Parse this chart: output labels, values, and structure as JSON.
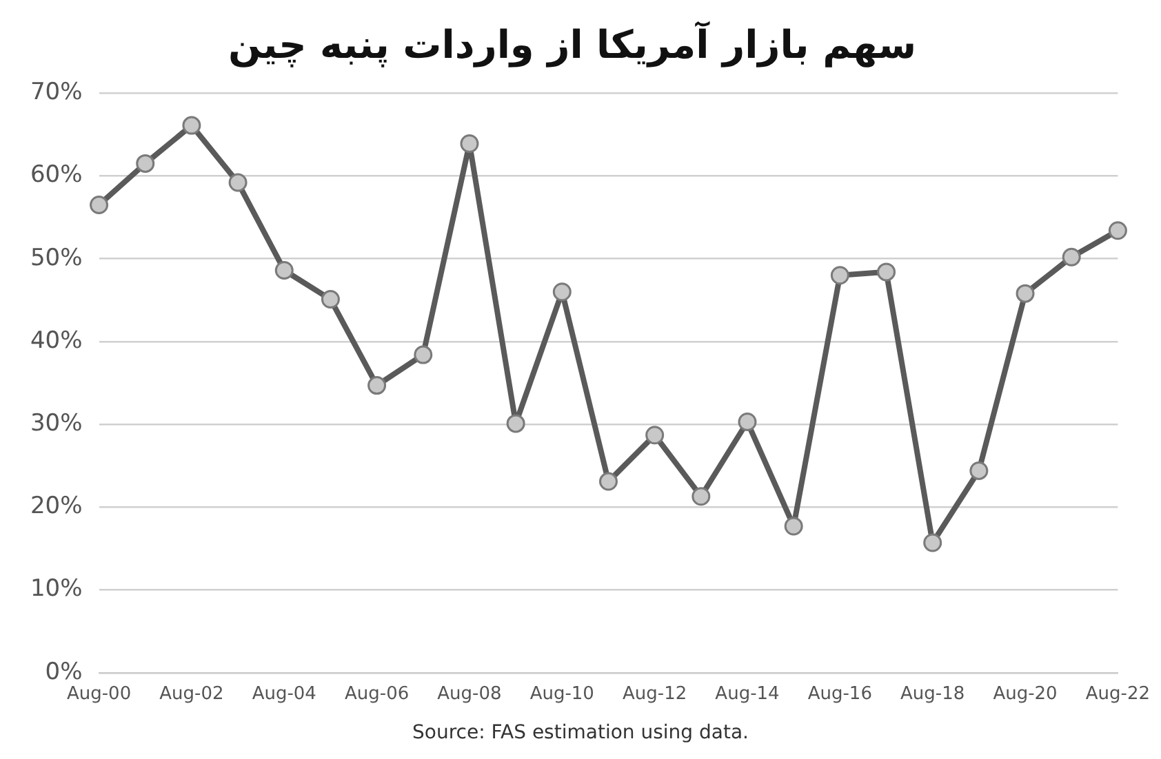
{
  "chart_data": {
    "type": "line",
    "title": "سهم بازار آمریکا از واردات پنبه چین",
    "categories": [
      "Aug-00",
      null,
      "Aug-02",
      null,
      "Aug-04",
      null,
      "Aug-06",
      null,
      "Aug-08",
      null,
      "Aug-10",
      null,
      "Aug-12",
      null,
      "Aug-14",
      null,
      "Aug-16",
      null,
      "Aug-18",
      null,
      "Aug-20",
      null,
      "Aug-22"
    ],
    "series": [
      {
        "color": "#5a5a5a",
        "values": [
          56.5,
          61.5,
          66.1,
          59.2,
          48.6,
          45.1,
          34.7,
          38.4,
          63.9,
          30.1,
          46.0,
          23.1,
          28.7,
          21.3,
          30.3,
          17.7,
          48.0,
          48.4,
          15.7,
          24.4,
          45.8,
          50.2,
          53.4
        ]
      }
    ],
    "ylim": [
      0,
      70
    ],
    "yticks": [
      {
        "value": 0,
        "label": "0%"
      },
      {
        "value": 10,
        "label": "10%"
      },
      {
        "value": 20,
        "label": "20%"
      },
      {
        "value": 30,
        "label": "30%"
      },
      {
        "value": 40,
        "label": "40%"
      },
      {
        "value": 50,
        "label": "50%"
      },
      {
        "value": 60,
        "label": "60%"
      },
      {
        "value": 70,
        "label": "70%"
      }
    ],
    "grid": "y",
    "marker": "circle",
    "line_style": "solid",
    "annotations": [
      "Source: FAS estimation using data."
    ]
  }
}
